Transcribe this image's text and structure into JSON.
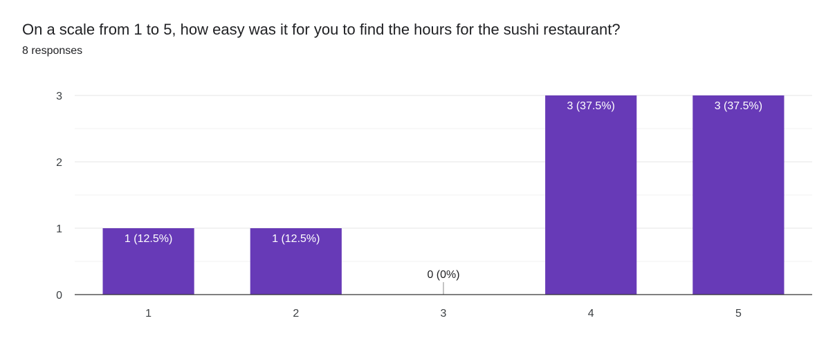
{
  "question": {
    "title": "On a scale from 1 to 5, how easy was it for you to find the hours for the sushi restaurant?",
    "responses": "8 responses"
  },
  "colors": {
    "bar": "#673ab7",
    "grid": "#e6e6e6",
    "axis": "#333333",
    "label_inside": "#ffffff",
    "label_outside": "#202124"
  },
  "chart_data": {
    "type": "bar",
    "title": "On a scale from 1 to 5, how easy was it for you to find the hours for the sushi restaurant?",
    "categories": [
      "1",
      "2",
      "3",
      "4",
      "5"
    ],
    "values": [
      1,
      1,
      0,
      3,
      3
    ],
    "data_labels": [
      "1 (12.5%)",
      "1 (12.5%)",
      "0 (0%)",
      "3 (37.5%)",
      "3 (37.5%)"
    ],
    "xlabel": "",
    "ylabel": "",
    "ylim": [
      0,
      3
    ],
    "yticks": [
      "0",
      "1",
      "2",
      "3"
    ],
    "grid": true,
    "legend": "none"
  }
}
